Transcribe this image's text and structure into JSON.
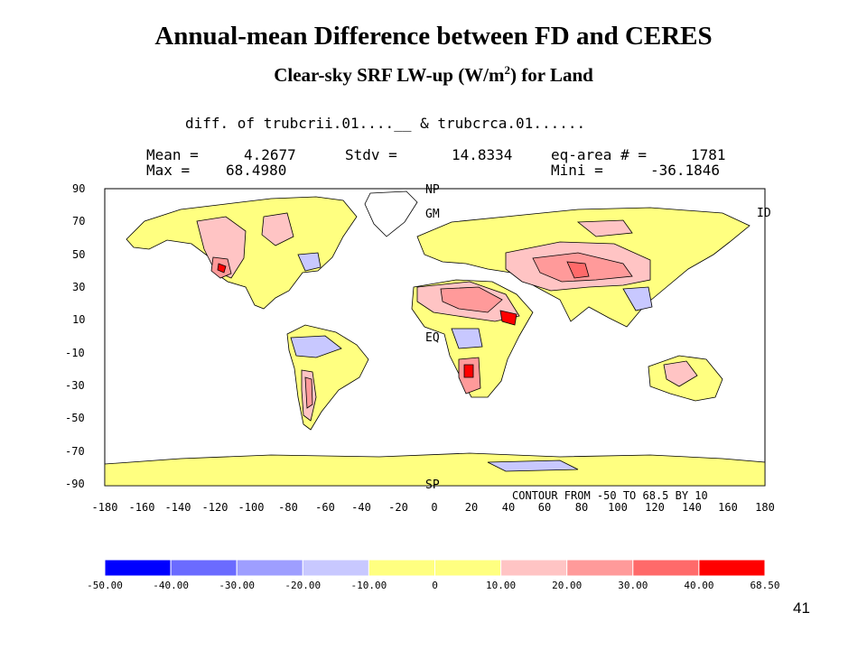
{
  "title": "Annual-mean Difference between FD and CERES",
  "subtitle": {
    "before": "Clear-sky SRF LW-up (W/m",
    "sup": "2",
    "after": ") for Land"
  },
  "header": {
    "line1": "diff. of trubcrii.01....__  & trubcrca.01......",
    "mean_label": "Mean =",
    "mean_value": "4.2677",
    "stdv_label": "Stdv =",
    "stdv_value": "14.8334",
    "eqarea_label": "eq-area # =",
    "eqarea_value": "1781",
    "max_label": "Max  =",
    "max_value": "68.4980",
    "min_label": "Mini =",
    "min_value": "-36.1846"
  },
  "map": {
    "y_ticks": [
      "90",
      "70",
      "50",
      "30",
      "10",
      "-10",
      "-30",
      "-50",
      "-70",
      "-90"
    ],
    "x_ticks": [
      "-180",
      "-160",
      "-140",
      "-120",
      "-100",
      "-80",
      "-60",
      "-40",
      "-20",
      "0",
      "20",
      "40",
      "60",
      "80",
      "100",
      "120",
      "140",
      "160",
      "180"
    ],
    "markers": {
      "np": "NP",
      "gm": "GM",
      "id": "ID",
      "eq": "EQ",
      "sp": "SP"
    },
    "contour_note": "CONTOUR FROM -50 TO 68.5 BY 10"
  },
  "colorbar": {
    "colors": [
      "#0000ff",
      "#6b6bff",
      "#9e9eff",
      "#c8c8ff",
      "#ffff80",
      "#ffff80",
      "#ffc4c4",
      "#ff9a9a",
      "#ff6a6a",
      "#ff0000"
    ],
    "labels": [
      "-50.00",
      "-40.00",
      "-30.00",
      "-20.00",
      "-10.00",
      "0",
      "10.00",
      "20.00",
      "30.00",
      "40.00",
      "68.50"
    ]
  },
  "page_number": "41"
}
